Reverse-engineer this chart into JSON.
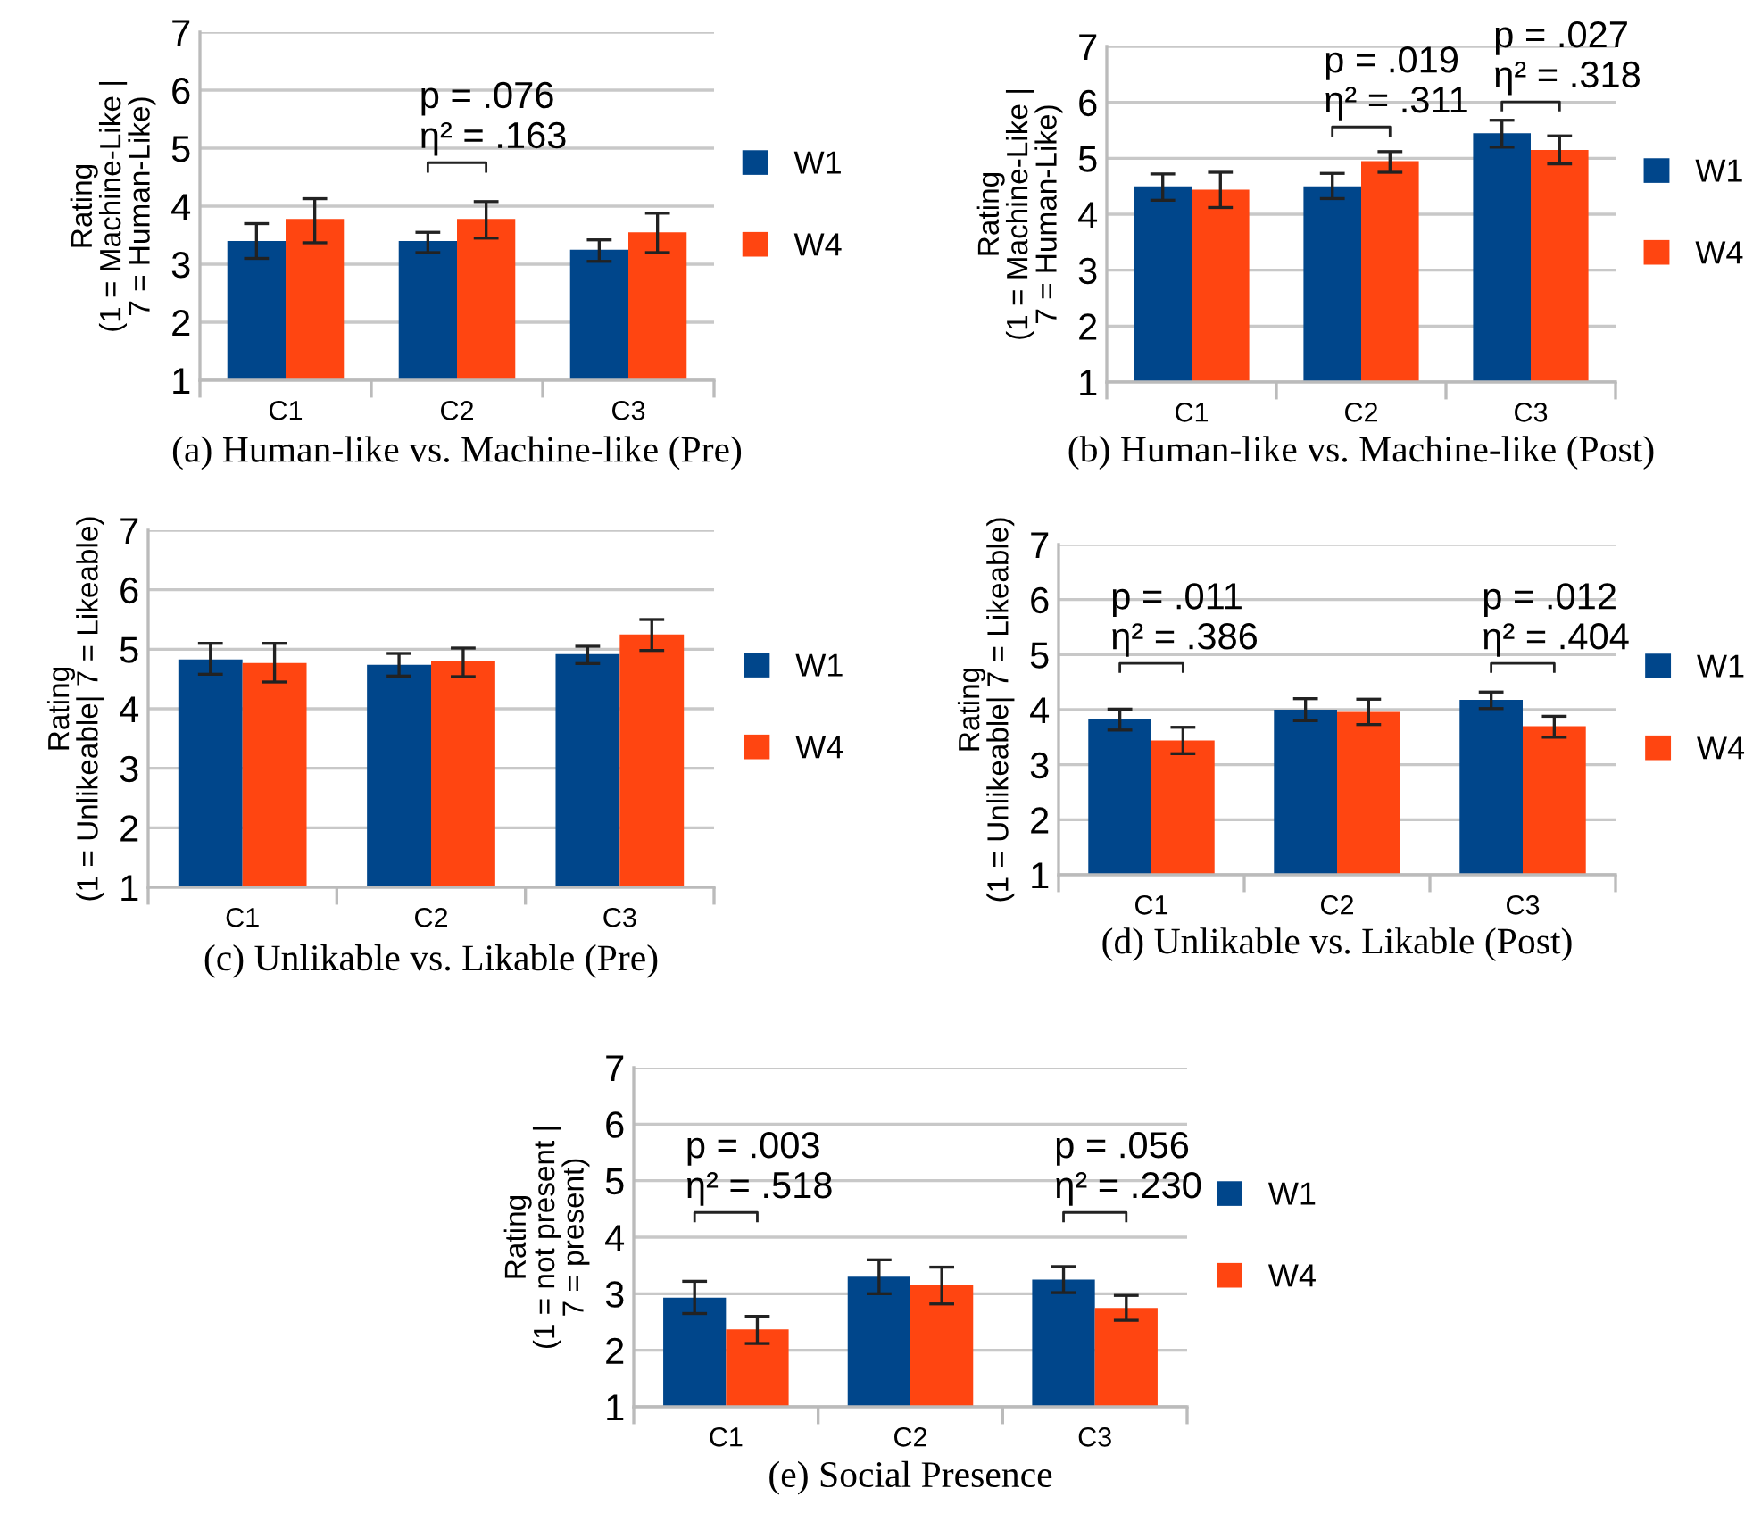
{
  "chart_data": [
    {
      "type": "bar",
      "title": "(a) Human-like vs. Machine-like (Pre)",
      "ylabel": "Rating\n(1 = Machine-Like |\n7 = Human-Like)",
      "categories": [
        "C1",
        "C2",
        "C3"
      ],
      "ylim": [
        1,
        7
      ],
      "yticks": [
        1,
        2,
        3,
        4,
        5,
        6,
        7
      ],
      "grid": "y",
      "legend": "right",
      "series": [
        {
          "name": "W1",
          "color": "#00468b",
          "values": [
            3.4,
            3.4,
            3.25
          ],
          "errors": [
            [
              3.1,
              3.7
            ],
            [
              3.2,
              3.55
            ],
            [
              3.05,
              3.42
            ]
          ]
        },
        {
          "name": "W4",
          "color": "#ff4511",
          "values": [
            3.78,
            3.78,
            3.55
          ],
          "errors": [
            [
              3.37,
              4.13
            ],
            [
              3.45,
              4.08
            ],
            [
              3.2,
              3.88
            ]
          ]
        }
      ],
      "annotations": [
        "p = .076\nη² = .163"
      ]
    },
    {
      "type": "bar",
      "title": "(b) Human-like vs. Machine-like (Post)",
      "ylabel": "Rating\n(1 = Machine-Like |\n7 = Human-Like)",
      "categories": [
        "C1",
        "C2",
        "C3"
      ],
      "ylim": [
        1,
        7
      ],
      "yticks": [
        1,
        2,
        3,
        4,
        5,
        6,
        7
      ],
      "grid": "y",
      "legend": "right",
      "series": [
        {
          "name": "W1",
          "color": "#00468b",
          "values": [
            4.5,
            4.5,
            5.45
          ],
          "errors": [
            [
              4.25,
              4.72
            ],
            [
              4.28,
              4.73
            ],
            [
              5.2,
              5.68
            ]
          ]
        },
        {
          "name": "W4",
          "color": "#ff4511",
          "values": [
            4.44,
            4.95,
            5.15
          ],
          "errors": [
            [
              4.12,
              4.75
            ],
            [
              4.75,
              5.12
            ],
            [
              4.9,
              5.4
            ]
          ]
        }
      ],
      "annotations": [
        "p = .019\nη² = .311",
        "p = .027\nη² = .318"
      ]
    },
    {
      "type": "bar",
      "title": "(c) Unlikable vs. Likable (Pre)",
      "ylabel": "Rating\n(1 = Unlikeable| 7 = Likeable)",
      "categories": [
        "C1",
        "C2",
        "C3"
      ],
      "ylim": [
        1,
        7
      ],
      "yticks": [
        1,
        2,
        3,
        4,
        5,
        6,
        7
      ],
      "grid": "y",
      "legend": "right",
      "series": [
        {
          "name": "W1",
          "color": "#00468b",
          "values": [
            4.83,
            4.74,
            4.92
          ],
          "errors": [
            [
              4.58,
              5.1
            ],
            [
              4.55,
              4.93
            ],
            [
              4.76,
              5.05
            ]
          ]
        },
        {
          "name": "W4",
          "color": "#ff4511",
          "values": [
            4.77,
            4.8,
            5.25
          ],
          "errors": [
            [
              4.45,
              5.1
            ],
            [
              4.54,
              5.02
            ],
            [
              4.98,
              5.5
            ]
          ]
        }
      ]
    },
    {
      "type": "bar",
      "title": "(d) Unlikable vs. Likable (Post)",
      "ylabel": "Rating\n(1 = Unlikeable| 7 = Likeable)",
      "categories": [
        "C1",
        "C2",
        "C3"
      ],
      "ylim": [
        1,
        7
      ],
      "yticks": [
        1,
        2,
        3,
        4,
        5,
        6,
        7
      ],
      "grid": "y",
      "legend": "right",
      "series": [
        {
          "name": "W1",
          "color": "#00468b",
          "values": [
            3.83,
            4.0,
            4.18
          ],
          "errors": [
            [
              3.63,
              4.01
            ],
            [
              3.8,
              4.2
            ],
            [
              4.02,
              4.32
            ]
          ]
        },
        {
          "name": "W4",
          "color": "#ff4511",
          "values": [
            3.44,
            3.96,
            3.7
          ],
          "errors": [
            [
              3.2,
              3.68
            ],
            [
              3.73,
              4.19
            ],
            [
              3.5,
              3.88
            ]
          ]
        }
      ],
      "annotations": [
        "p = .011\nη² = .386",
        "p = .012\nη² = .404"
      ]
    },
    {
      "type": "bar",
      "title": "(e) Social Presence",
      "ylabel": "Rating\n(1 = not present |\n7 = present)",
      "categories": [
        "C1",
        "C2",
        "C3"
      ],
      "ylim": [
        1,
        7
      ],
      "yticks": [
        1,
        2,
        3,
        4,
        5,
        6,
        7
      ],
      "grid": "y",
      "legend": "right",
      "series": [
        {
          "name": "W1",
          "color": "#00468b",
          "values": [
            2.93,
            3.3,
            3.25
          ],
          "errors": [
            [
              2.65,
              3.22
            ],
            [
              3.0,
              3.6
            ],
            [
              3.02,
              3.48
            ]
          ]
        },
        {
          "name": "W4",
          "color": "#ff4511",
          "values": [
            2.37,
            3.15,
            2.75
          ],
          "errors": [
            [
              2.12,
              2.6
            ],
            [
              2.82,
              3.47
            ],
            [
              2.53,
              2.97
            ]
          ]
        }
      ],
      "annotations": [
        "p = .003\nη² = .518",
        "p = .056\nη² = .230"
      ]
    }
  ]
}
